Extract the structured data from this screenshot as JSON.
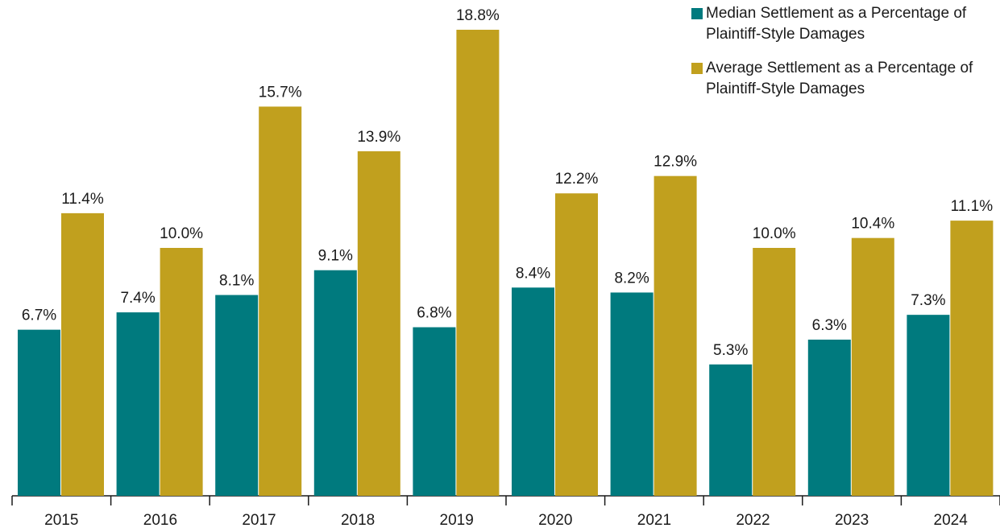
{
  "chart_data": {
    "type": "bar",
    "categories": [
      "2015",
      "2016",
      "2017",
      "2018",
      "2019",
      "2020",
      "2021",
      "2022",
      "2023",
      "2024"
    ],
    "series": [
      {
        "name": "Median Settlement as a Percentage of Plaintiff-Style Damages",
        "color": "#007a7e",
        "values": [
          6.7,
          7.4,
          8.1,
          9.1,
          6.8,
          8.4,
          8.2,
          5.3,
          6.3,
          7.3
        ],
        "value_labels": [
          "6.7%",
          "7.4%",
          "8.1%",
          "9.1%",
          "6.8%",
          "8.4%",
          "8.2%",
          "5.3%",
          "6.3%",
          "7.3%"
        ]
      },
      {
        "name": "Average Settlement as a Percentage of Plaintiff-Style Damages",
        "color": "#c1a01e",
        "values": [
          11.4,
          10.0,
          15.7,
          13.9,
          18.8,
          12.2,
          12.9,
          10.0,
          10.4,
          11.1
        ],
        "value_labels": [
          "11.4%",
          "10.0%",
          "15.7%",
          "13.9%",
          "18.8%",
          "12.2%",
          "12.9%",
          "10.0%",
          "10.4%",
          "11.1%"
        ]
      }
    ],
    "legend": "top-right"
  }
}
